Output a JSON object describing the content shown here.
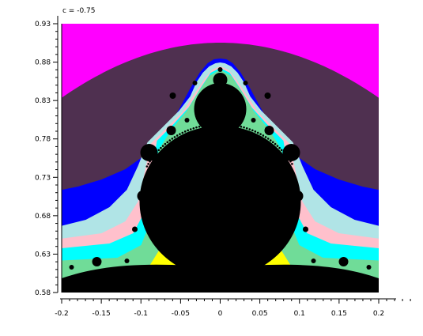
{
  "chart_data": {
    "type": "heatmap",
    "title": "",
    "parameter_label": "c = -0.75",
    "xlabel": "",
    "ylabel": "",
    "xlim": [
      -0.2,
      0.2
    ],
    "ylim": [
      0.58,
      0.92
    ],
    "x_ticks": [
      -0.2,
      -0.15,
      -0.1,
      -0.05,
      0,
      0.05,
      0.1,
      0.15,
      0.2
    ],
    "x_tick_labels": [
      "-0.2",
      "-0.15",
      "-0.1",
      "-0.05",
      "0",
      "0.05",
      "0.1",
      "0.15",
      "0.2"
    ],
    "y_ticks": [
      0.58,
      0.63,
      0.68,
      0.73,
      0.78,
      0.83,
      0.88,
      0.93
    ],
    "y_tick_labels": [
      "0.58",
      "0.63",
      "0.68",
      "0.73",
      "0.78",
      "0.83",
      "0.88",
      "0.93"
    ],
    "grid": false,
    "colors": {
      "outer": "#ff00ff",
      "band_purple": "#4f3050",
      "band_blue": "#0000ff",
      "band_lightblue": "#b0e4e6",
      "band_pink": "#ffc0cc",
      "band_cyan": "#00ffff",
      "band_green": "#70dc98",
      "band_yellow": "#ffff00",
      "set_interior": "#000000"
    }
  }
}
